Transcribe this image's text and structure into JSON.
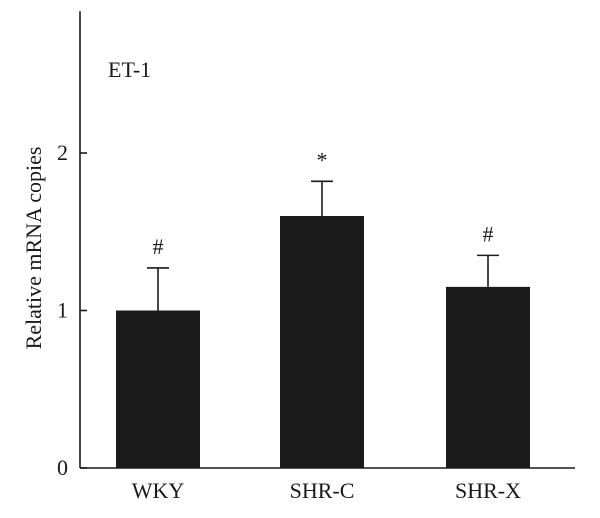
{
  "chart_data": {
    "type": "bar",
    "panel_label": "ET-1",
    "categories": [
      "WKY",
      "SHR-C",
      "SHR-X"
    ],
    "values": [
      1.0,
      1.6,
      1.15
    ],
    "error_upper": [
      0.27,
      0.22,
      0.2
    ],
    "annotations": [
      "#",
      "*",
      "#"
    ],
    "xlabel": "",
    "ylabel": "Relative mRNA copies",
    "ylim": [
      0,
      2.9
    ],
    "yticks": [
      0,
      1,
      2
    ],
    "ytick_labels": [
      "0",
      "1",
      "2"
    ],
    "grid": false,
    "legend": "none",
    "bar_color": "#1a1a1a",
    "axis_color": "#1a1a1a"
  }
}
